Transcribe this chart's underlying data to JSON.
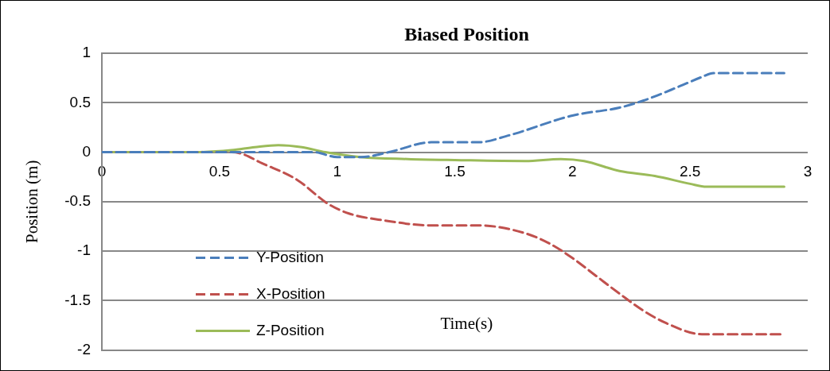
{
  "chart_data": {
    "type": "line",
    "title": "Biased Position",
    "xlabel": "Time(s)",
    "ylabel": "Position (m)",
    "xlim": [
      0,
      3
    ],
    "xticks": [
      0,
      0.5,
      1,
      1.5,
      2,
      2.5,
      3
    ],
    "ylim": [
      -2,
      1
    ],
    "yticks": [
      -2,
      -1.5,
      -1,
      -0.5,
      0,
      0.5,
      1
    ],
    "grid": "y",
    "legend": "bottom left",
    "marker": "none",
    "series": [
      {
        "name": "Y-Position",
        "color": "#4a7ebb",
        "line_style": "dashed",
        "x": [
          0,
          0.5,
          0.8,
          0.9,
          1.0,
          1.1,
          1.22,
          1.4,
          1.6,
          1.73,
          2.0,
          2.2,
          2.3,
          2.45,
          2.55,
          2.6,
          2.9
        ],
        "values": [
          0,
          0,
          0,
          0,
          -0.05,
          -0.05,
          0,
          0.1,
          0.1,
          0.17,
          0.37,
          0.45,
          0.52,
          0.66,
          0.76,
          0.8,
          0.8
        ]
      },
      {
        "name": "X-Position",
        "color": "#c0504d",
        "line_style": "dashed",
        "x": [
          0,
          0.55,
          0.6,
          0.67,
          0.83,
          0.96,
          1.05,
          1.2,
          1.4,
          1.6,
          1.8,
          1.9,
          2.0,
          2.1,
          2.2,
          2.3,
          2.4,
          2.55,
          2.9
        ],
        "values": [
          0,
          0,
          -0.02,
          -0.1,
          -0.28,
          -0.52,
          -0.62,
          -0.69,
          -0.74,
          -0.74,
          -0.82,
          -0.92,
          -1.07,
          -1.25,
          -1.43,
          -1.6,
          -1.73,
          -1.84,
          -1.84
        ]
      },
      {
        "name": "Z-Position",
        "color": "#9bbb59",
        "line_style": "solid",
        "x": [
          0,
          0.4,
          0.55,
          0.65,
          0.75,
          0.85,
          0.95,
          1.1,
          1.3,
          1.5,
          1.8,
          1.95,
          2.05,
          2.2,
          2.35,
          2.5,
          2.57,
          2.9
        ],
        "values": [
          0,
          0,
          0.02,
          0.05,
          0.07,
          0.05,
          0,
          -0.05,
          -0.07,
          -0.08,
          -0.09,
          -0.07,
          -0.09,
          -0.19,
          -0.24,
          -0.32,
          -0.35,
          -0.35
        ]
      }
    ]
  }
}
